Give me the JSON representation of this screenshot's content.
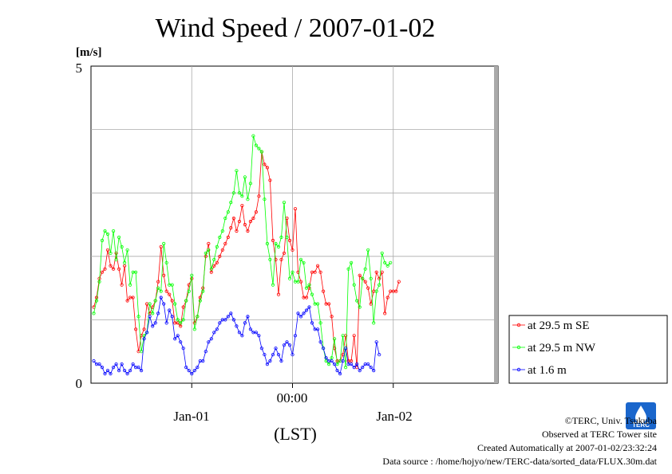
{
  "chart_data": {
    "type": "line",
    "title": "Wind Speed / 2007-01-02",
    "ylabel": "[m/s]",
    "xlabel": "(LST)",
    "ylim": [
      0,
      5
    ],
    "y_ticks": [
      "0",
      "5"
    ],
    "x_ticks": [
      {
        "label": "00:00",
        "hour": 36
      },
      {
        "label": "Jan-01",
        "hour": 18
      },
      {
        "label": "Jan-02",
        "hour": 54
      }
    ],
    "x_range_hours": [
      0,
      72
    ],
    "interval_minutes": 30,
    "grid": true,
    "legend_position": "bottom-right",
    "series": [
      {
        "name": "at 29.5 m SE",
        "color": "#ff0000",
        "values": [
          1.2,
          1.35,
          1.65,
          1.75,
          1.8,
          2.1,
          1.85,
          1.8,
          2.05,
          1.8,
          1.55,
          1.85,
          1.3,
          1.35,
          1.35,
          0.85,
          0.5,
          0.75,
          0.85,
          1.25,
          1.1,
          1.2,
          1.3,
          1.6,
          2.15,
          1.7,
          1.45,
          1.4,
          1.3,
          0.95,
          0.95,
          0.9,
          1.2,
          1.3,
          1.55,
          1.65,
          0.95,
          1.05,
          1.35,
          1.5,
          2.0,
          2.2,
          1.75,
          1.85,
          1.9,
          2.0,
          2.1,
          2.2,
          2.3,
          2.45,
          2.6,
          2.4,
          2.55,
          2.8,
          2.5,
          2.4,
          2.55,
          2.6,
          2.7,
          2.95,
          3.65,
          3.45,
          3.4,
          3.2,
          2.25,
          1.95,
          1.4,
          1.95,
          2.05,
          2.6,
          2.25,
          2.1,
          2.75,
          1.75,
          1.6,
          1.35,
          1.35,
          1.5,
          1.75,
          1.75,
          1.85,
          1.75,
          1.45,
          1.25,
          1.25,
          1.05,
          0.55,
          0.35,
          0.35,
          0.45,
          0.75,
          0.35,
          0.35,
          0.75,
          0.25,
          1.7,
          1.65,
          1.6,
          1.5,
          1.25,
          1.45,
          1.75,
          1.65,
          1.75,
          1.1,
          1.35,
          1.45,
          1.45,
          1.45,
          1.6
        ],
        "x_start_hour": 0.0
      },
      {
        "name": "at 29.5 m NW",
        "color": "#00ff00",
        "values": [
          1.1,
          1.3,
          1.6,
          2.25,
          2.4,
          2.35,
          2.05,
          2.4,
          1.95,
          2.3,
          2.15,
          1.9,
          2.1,
          1.55,
          1.75,
          1.75,
          1.05,
          0.5,
          0.75,
          0.8,
          1.25,
          1.1,
          1.3,
          1.5,
          1.45,
          2.2,
          1.9,
          1.55,
          1.55,
          1.25,
          1.0,
          0.95,
          1.0,
          1.3,
          1.45,
          1.7,
          0.85,
          1.05,
          1.3,
          1.45,
          2.05,
          2.1,
          1.8,
          1.95,
          2.15,
          2.3,
          2.4,
          2.6,
          2.7,
          2.85,
          3.0,
          3.35,
          3.0,
          2.95,
          3.25,
          2.9,
          3.15,
          3.9,
          3.75,
          3.7,
          3.65,
          2.9,
          2.2,
          1.95,
          1.55,
          2.2,
          2.15,
          2.3,
          2.85,
          2.3,
          1.65,
          1.75,
          1.6,
          1.6,
          1.95,
          1.9,
          1.5,
          1.55,
          1.4,
          1.25,
          1.25,
          0.95,
          0.55,
          0.35,
          0.3,
          0.4,
          0.7,
          0.3,
          0.35,
          0.75,
          0.25,
          1.8,
          1.9,
          1.55,
          1.3,
          1.2,
          1.65,
          1.8,
          2.1,
          1.65,
          0.95,
          1.45,
          1.55,
          2.05,
          1.9,
          1.85,
          1.9
        ]
      },
      {
        "name": "at 1.6 m",
        "color": "#0000ff",
        "values": [
          0.35,
          0.3,
          0.3,
          0.25,
          0.15,
          0.2,
          0.15,
          0.25,
          0.3,
          0.2,
          0.3,
          0.2,
          0.15,
          0.2,
          0.3,
          0.25,
          0.25,
          0.2,
          0.7,
          0.8,
          1.05,
          0.9,
          0.95,
          1.1,
          1.35,
          1.25,
          0.95,
          1.15,
          1.05,
          0.7,
          0.75,
          0.65,
          0.55,
          0.25,
          0.2,
          0.15,
          0.2,
          0.25,
          0.35,
          0.35,
          0.5,
          0.65,
          0.7,
          0.8,
          0.85,
          0.95,
          1.0,
          1.0,
          1.05,
          1.1,
          1.0,
          0.9,
          0.8,
          0.75,
          0.95,
          1.05,
          0.85,
          0.8,
          0.8,
          0.75,
          0.55,
          0.45,
          0.3,
          0.35,
          0.45,
          0.55,
          0.45,
          0.35,
          0.6,
          0.65,
          0.6,
          0.45,
          0.75,
          1.1,
          1.05,
          1.1,
          1.15,
          1.2,
          0.95,
          0.85,
          0.85,
          0.65,
          0.55,
          0.4,
          0.35,
          0.35,
          0.3,
          0.2,
          0.15,
          0.35,
          0.55,
          0.3,
          0.3,
          0.25,
          0.3,
          0.2,
          0.25,
          0.3,
          0.3,
          0.25,
          0.2,
          0.65,
          0.45
        ],
        "x_start_hour": 0.0
      }
    ]
  },
  "footer": {
    "copyright": "©TERC, Univ. Tsukuba",
    "observed": "Observed at TERC Tower site",
    "created": "Created Automatically at 2007-01-02/23:32:24",
    "source": "Data source : /home/hojyo/new/TERC-data/sorted_data/FLUX.30m.dat"
  },
  "logo": {
    "text": "TERC",
    "color": "#1a66cc"
  }
}
